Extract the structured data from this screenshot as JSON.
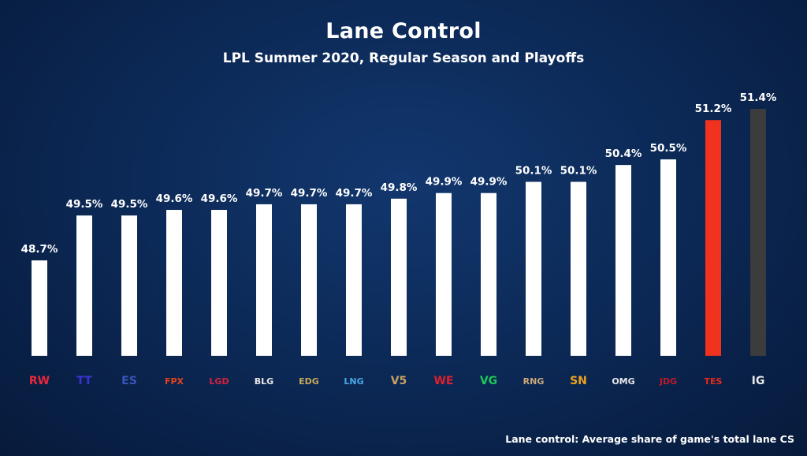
{
  "chart_data": {
    "type": "bar",
    "title": "Lane Control",
    "subtitle": "LPL Summer 2020, Regular Season and Playoffs",
    "categories": [
      "RW",
      "TT",
      "ES",
      "FPX",
      "LGD",
      "BLG",
      "EDG",
      "LNG",
      "V5",
      "WE",
      "VG",
      "RNG",
      "SN",
      "OMG",
      "JDG",
      "TES",
      "IG"
    ],
    "values": [
      48.7,
      49.5,
      49.5,
      49.6,
      49.6,
      49.7,
      49.7,
      49.7,
      49.8,
      49.9,
      49.9,
      50.1,
      50.1,
      50.4,
      50.5,
      51.2,
      51.4
    ],
    "labels": [
      "48.7%",
      "49.5%",
      "49.5%",
      "49.6%",
      "49.6%",
      "49.7%",
      "49.7%",
      "49.7%",
      "49.8%",
      "49.9%",
      "49.9%",
      "50.1%",
      "50.1%",
      "50.4%",
      "50.5%",
      "51.2%",
      "51.4%"
    ],
    "bar_colors": [
      "#ffffff",
      "#ffffff",
      "#ffffff",
      "#ffffff",
      "#ffffff",
      "#ffffff",
      "#ffffff",
      "#ffffff",
      "#ffffff",
      "#ffffff",
      "#ffffff",
      "#ffffff",
      "#ffffff",
      "#ffffff",
      "#ffffff",
      "#f0321f",
      "#3c3c3c"
    ],
    "logo_colors": [
      "#e8283c",
      "#3b33d6",
      "#3a55b8",
      "#e8401c",
      "#d8203c",
      "#e8e8e8",
      "#c9a85a",
      "#4aa8e8",
      "#c9a060",
      "#e0202c",
      "#1ec85a",
      "#c9a878",
      "#f0a020",
      "#e8e8e8",
      "#c01828",
      "#e8281c",
      "#e8e8e8"
    ],
    "footnote": "Lane control: Average share of game's total lane CS",
    "ylim": [
      47.0,
      51.4
    ],
    "xlabel": "",
    "ylabel": ""
  }
}
